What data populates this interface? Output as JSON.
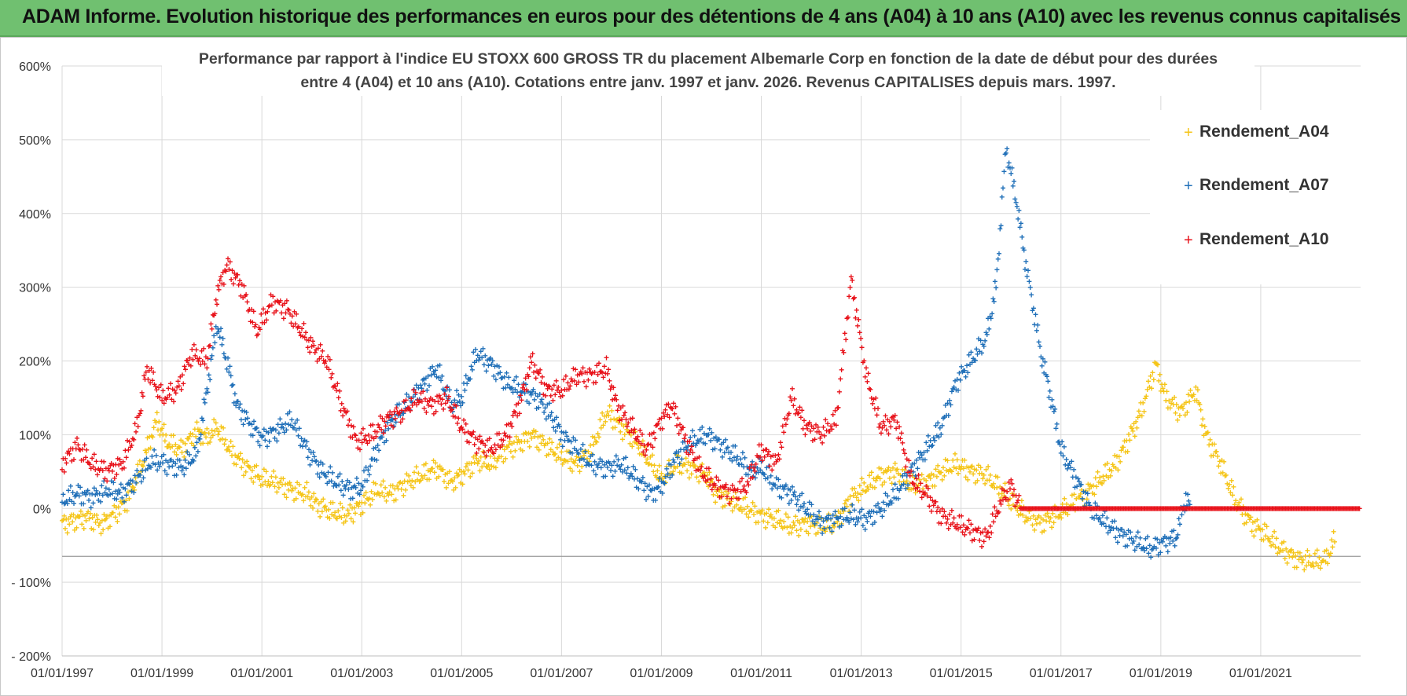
{
  "header": {
    "title": "ADAM Informe. Evolution historique des performances en euros pour des détentions de 4 ans (A04) à 10 ans (A10) avec les revenus connus capitalisés",
    "bg_color": "#70c070"
  },
  "chart_data": {
    "type": "scatter",
    "title_lines": [
      "Performance par rapport à l'indice EU STOXX 600 GROSS TR  du placement Albemarle Corp en fonction de la date de début pour des durées",
      "entre 4 (A04) et 10 ans (A10). Cotations entre janv. 1997 et janv. 2026. Revenus CAPITALISES depuis mars. 1997."
    ],
    "xlabel": "",
    "ylabel": "",
    "xlim": [
      1997.0,
      2023.0
    ],
    "ylim": [
      -200,
      600
    ],
    "y_ticks": [
      {
        "value": 600,
        "label": "600%"
      },
      {
        "value": 500,
        "label": "500%"
      },
      {
        "value": 400,
        "label": "400%"
      },
      {
        "value": 300,
        "label": "300%"
      },
      {
        "value": 200,
        "label": "200%"
      },
      {
        "value": 100,
        "label": "100%"
      },
      {
        "value": 0,
        "label": "0%"
      },
      {
        "value": -100,
        "label": "- 100%"
      },
      {
        "value": -200,
        "label": "- 200%"
      }
    ],
    "x_ticks": [
      {
        "value": 1997.0,
        "label": "01/01/1997"
      },
      {
        "value": 1999.0,
        "label": "01/01/1999"
      },
      {
        "value": 2001.0,
        "label": "01/01/2001"
      },
      {
        "value": 2003.0,
        "label": "01/01/2003"
      },
      {
        "value": 2005.0,
        "label": "01/01/2005"
      },
      {
        "value": 2007.0,
        "label": "01/01/2007"
      },
      {
        "value": 2009.0,
        "label": "01/01/2009"
      },
      {
        "value": 2011.0,
        "label": "01/01/2011"
      },
      {
        "value": 2013.0,
        "label": "01/01/2013"
      },
      {
        "value": 2015.0,
        "label": "01/01/2015"
      },
      {
        "value": 2017.0,
        "label": "01/01/2017"
      },
      {
        "value": 2019.0,
        "label": "01/01/2019"
      },
      {
        "value": 2021.0,
        "label": "01/01/2021"
      }
    ],
    "grid": true,
    "legend_position": "top-right",
    "series": [
      {
        "name": "Rendement_A04",
        "color": "#f5c518",
        "points": [
          [
            1997.0,
            -20
          ],
          [
            1997.5,
            -12
          ],
          [
            1997.8,
            -22
          ],
          [
            1998.0,
            -10
          ],
          [
            1998.3,
            10
          ],
          [
            1998.6,
            60
          ],
          [
            1998.9,
            120
          ],
          [
            1999.1,
            90
          ],
          [
            1999.4,
            80
          ],
          [
            1999.7,
            105
          ],
          [
            1999.9,
            95
          ],
          [
            2000.1,
            110
          ],
          [
            2000.4,
            75
          ],
          [
            2000.7,
            55
          ],
          [
            2001.0,
            40
          ],
          [
            2001.3,
            35
          ],
          [
            2001.6,
            25
          ],
          [
            2001.9,
            20
          ],
          [
            2002.1,
            5
          ],
          [
            2002.4,
            -5
          ],
          [
            2002.7,
            -10
          ],
          [
            2003.0,
            5
          ],
          [
            2003.3,
            25
          ],
          [
            2003.6,
            20
          ],
          [
            2003.9,
            35
          ],
          [
            2004.2,
            45
          ],
          [
            2004.5,
            55
          ],
          [
            2004.8,
            35
          ],
          [
            2005.0,
            45
          ],
          [
            2005.3,
            65
          ],
          [
            2005.6,
            60
          ],
          [
            2005.9,
            80
          ],
          [
            2006.2,
            90
          ],
          [
            2006.4,
            100
          ],
          [
            2006.7,
            85
          ],
          [
            2007.0,
            70
          ],
          [
            2007.3,
            60
          ],
          [
            2007.6,
            80
          ],
          [
            2007.9,
            130
          ],
          [
            2008.2,
            110
          ],
          [
            2008.5,
            90
          ],
          [
            2008.8,
            60
          ],
          [
            2009.0,
            40
          ],
          [
            2009.3,
            60
          ],
          [
            2009.6,
            55
          ],
          [
            2009.9,
            45
          ],
          [
            2010.1,
            20
          ],
          [
            2010.4,
            10
          ],
          [
            2010.7,
            0
          ],
          [
            2011.0,
            -10
          ],
          [
            2011.3,
            -15
          ],
          [
            2011.6,
            -25
          ],
          [
            2011.9,
            -20
          ],
          [
            2012.2,
            -25
          ],
          [
            2012.5,
            -20
          ],
          [
            2012.8,
            15
          ],
          [
            2013.1,
            30
          ],
          [
            2013.4,
            45
          ],
          [
            2013.7,
            50
          ],
          [
            2014.0,
            30
          ],
          [
            2014.3,
            35
          ],
          [
            2014.6,
            50
          ],
          [
            2014.9,
            60
          ],
          [
            2015.2,
            50
          ],
          [
            2015.5,
            45
          ],
          [
            2015.8,
            25
          ],
          [
            2016.0,
            10
          ],
          [
            2016.3,
            -10
          ],
          [
            2016.6,
            -20
          ],
          [
            2016.9,
            -10
          ],
          [
            2017.2,
            5
          ],
          [
            2017.5,
            20
          ],
          [
            2017.8,
            40
          ],
          [
            2018.1,
            60
          ],
          [
            2018.4,
            100
          ],
          [
            2018.6,
            130
          ],
          [
            2018.9,
            195
          ],
          [
            2019.1,
            150
          ],
          [
            2019.4,
            130
          ],
          [
            2019.7,
            160
          ],
          [
            2019.9,
            100
          ],
          [
            2020.2,
            60
          ],
          [
            2020.5,
            10
          ],
          [
            2020.8,
            -20
          ],
          [
            2021.1,
            -35
          ],
          [
            2021.4,
            -55
          ],
          [
            2021.7,
            -68
          ],
          [
            2022.0,
            -72
          ],
          [
            2022.3,
            -70
          ],
          [
            2022.5,
            -40
          ]
        ]
      },
      {
        "name": "Rendement_A07",
        "color": "#1f6fb8",
        "points": [
          [
            1997.0,
            10
          ],
          [
            1997.3,
            20
          ],
          [
            1997.6,
            15
          ],
          [
            1997.9,
            25
          ],
          [
            1998.2,
            20
          ],
          [
            1998.5,
            40
          ],
          [
            1998.8,
            65
          ],
          [
            1999.1,
            60
          ],
          [
            1999.4,
            55
          ],
          [
            1999.7,
            75
          ],
          [
            1999.9,
            160
          ],
          [
            2000.1,
            250
          ],
          [
            2000.3,
            200
          ],
          [
            2000.5,
            140
          ],
          [
            2000.8,
            110
          ],
          [
            2001.0,
            95
          ],
          [
            2001.3,
            105
          ],
          [
            2001.6,
            120
          ],
          [
            2001.9,
            80
          ],
          [
            2002.2,
            50
          ],
          [
            2002.5,
            35
          ],
          [
            2002.8,
            25
          ],
          [
            2003.0,
            30
          ],
          [
            2003.3,
            80
          ],
          [
            2003.6,
            120
          ],
          [
            2003.9,
            140
          ],
          [
            2004.2,
            165
          ],
          [
            2004.5,
            190
          ],
          [
            2004.8,
            140
          ],
          [
            2005.0,
            150
          ],
          [
            2005.3,
            210
          ],
          [
            2005.6,
            195
          ],
          [
            2005.9,
            170
          ],
          [
            2006.2,
            160
          ],
          [
            2006.5,
            150
          ],
          [
            2006.8,
            125
          ],
          [
            2007.0,
            100
          ],
          [
            2007.3,
            80
          ],
          [
            2007.6,
            60
          ],
          [
            2007.9,
            55
          ],
          [
            2008.2,
            60
          ],
          [
            2008.5,
            40
          ],
          [
            2008.8,
            20
          ],
          [
            2009.0,
            30
          ],
          [
            2009.3,
            70
          ],
          [
            2009.6,
            90
          ],
          [
            2009.9,
            100
          ],
          [
            2010.2,
            85
          ],
          [
            2010.5,
            70
          ],
          [
            2010.8,
            50
          ],
          [
            2011.0,
            55
          ],
          [
            2011.3,
            30
          ],
          [
            2011.6,
            20
          ],
          [
            2011.9,
            0
          ],
          [
            2012.2,
            -20
          ],
          [
            2012.5,
            -15
          ],
          [
            2012.8,
            -10
          ],
          [
            2013.1,
            -15
          ],
          [
            2013.4,
            0
          ],
          [
            2013.7,
            20
          ],
          [
            2014.0,
            50
          ],
          [
            2014.3,
            80
          ],
          [
            2014.6,
            110
          ],
          [
            2014.9,
            170
          ],
          [
            2015.2,
            200
          ],
          [
            2015.5,
            230
          ],
          [
            2015.7,
            300
          ],
          [
            2015.9,
            490
          ],
          [
            2016.1,
            420
          ],
          [
            2016.3,
            330
          ],
          [
            2016.6,
            210
          ],
          [
            2016.8,
            150
          ],
          [
            2017.0,
            80
          ],
          [
            2017.3,
            40
          ],
          [
            2017.6,
            0
          ],
          [
            2017.9,
            -20
          ],
          [
            2018.2,
            -35
          ],
          [
            2018.5,
            -45
          ],
          [
            2018.8,
            -55
          ],
          [
            2019.1,
            -45
          ],
          [
            2019.3,
            -40
          ],
          [
            2019.5,
            15
          ],
          [
            2019.6,
            0
          ]
        ]
      },
      {
        "name": "Rendement_A10",
        "color": "#e8121a",
        "points": [
          [
            1997.0,
            60
          ],
          [
            1997.3,
            85
          ],
          [
            1997.6,
            60
          ],
          [
            1997.9,
            50
          ],
          [
            1998.2,
            60
          ],
          [
            1998.5,
            110
          ],
          [
            1998.7,
            190
          ],
          [
            1999.0,
            150
          ],
          [
            1999.3,
            160
          ],
          [
            1999.6,
            210
          ],
          [
            1999.9,
            200
          ],
          [
            2000.1,
            290
          ],
          [
            2000.3,
            330
          ],
          [
            2000.6,
            300
          ],
          [
            2000.9,
            240
          ],
          [
            2001.2,
            280
          ],
          [
            2001.5,
            270
          ],
          [
            2001.8,
            240
          ],
          [
            2002.0,
            220
          ],
          [
            2002.3,
            200
          ],
          [
            2002.6,
            140
          ],
          [
            2002.9,
            90
          ],
          [
            2003.2,
            100
          ],
          [
            2003.5,
            120
          ],
          [
            2003.8,
            130
          ],
          [
            2004.1,
            150
          ],
          [
            2004.4,
            140
          ],
          [
            2004.7,
            150
          ],
          [
            2005.0,
            110
          ],
          [
            2005.3,
            90
          ],
          [
            2005.6,
            80
          ],
          [
            2005.9,
            100
          ],
          [
            2006.2,
            150
          ],
          [
            2006.4,
            200
          ],
          [
            2006.7,
            160
          ],
          [
            2007.0,
            160
          ],
          [
            2007.3,
            180
          ],
          [
            2007.6,
            180
          ],
          [
            2007.9,
            190
          ],
          [
            2008.1,
            140
          ],
          [
            2008.4,
            110
          ],
          [
            2008.7,
            80
          ],
          [
            2009.0,
            120
          ],
          [
            2009.2,
            140
          ],
          [
            2009.5,
            90
          ],
          [
            2009.8,
            50
          ],
          [
            2010.1,
            30
          ],
          [
            2010.4,
            20
          ],
          [
            2010.7,
            30
          ],
          [
            2011.0,
            80
          ],
          [
            2011.3,
            60
          ],
          [
            2011.6,
            150
          ],
          [
            2011.9,
            110
          ],
          [
            2012.2,
            100
          ],
          [
            2012.5,
            120
          ],
          [
            2012.8,
            310
          ],
          [
            2013.1,
            180
          ],
          [
            2013.4,
            110
          ],
          [
            2013.7,
            120
          ],
          [
            2014.0,
            40
          ],
          [
            2014.3,
            20
          ],
          [
            2014.6,
            -10
          ],
          [
            2014.9,
            -20
          ],
          [
            2015.2,
            -30
          ],
          [
            2015.5,
            -40
          ],
          [
            2015.8,
            10
          ],
          [
            2016.0,
            30
          ],
          [
            2016.2,
            0
          ],
          [
            2023.0,
            0
          ]
        ]
      }
    ]
  }
}
